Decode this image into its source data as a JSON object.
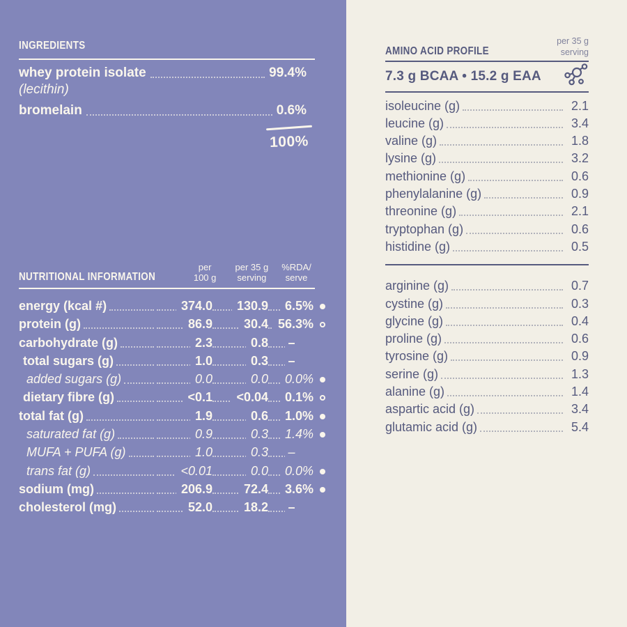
{
  "colors": {
    "panel_left_bg": "#8286ba",
    "panel_right_bg": "#f2efe6",
    "text_on_left": "#faf6ec",
    "text_on_right": "#565a7e"
  },
  "ingredients": {
    "title": "INGREDIENTS",
    "items": [
      {
        "name": "whey protein isolate",
        "note": "(lecithin)",
        "value": "99.4%"
      },
      {
        "name": "bromelain",
        "note": "",
        "value": "0.6%"
      }
    ],
    "total": "100%"
  },
  "nutrition": {
    "title": "NUTRITIONAL INFORMATION",
    "columns": [
      "per\n100 g",
      "per 35 g\nserving",
      "%RDA/\nserve"
    ],
    "rows": [
      {
        "label": "energy (kcal #)",
        "indent": 0,
        "italic": false,
        "per100": "374.0",
        "per35": "130.9",
        "rda": "6.5%",
        "bullet": "filled"
      },
      {
        "label": "protein (g)",
        "indent": 0,
        "italic": false,
        "per100": "86.9",
        "per35": "30.4",
        "rda": "56.3%",
        "bullet": "open"
      },
      {
        "label": "carbohydrate (g)",
        "indent": 0,
        "italic": false,
        "per100": "2.3",
        "per35": "0.8",
        "rda": "–",
        "bullet": "none"
      },
      {
        "label": "total sugars (g)",
        "indent": 1,
        "italic": false,
        "per100": "1.0",
        "per35": "0.3",
        "rda": "–",
        "bullet": "none"
      },
      {
        "label": "added sugars (g)",
        "indent": 2,
        "italic": true,
        "per100": "0.0",
        "per35": "0.0",
        "rda": "0.0%",
        "bullet": "filled"
      },
      {
        "label": "dietary fibre (g)",
        "indent": 1,
        "italic": false,
        "per100": "<0.1",
        "per35": "<0.04",
        "rda": "0.1%",
        "bullet": "open"
      },
      {
        "label": "total fat (g)",
        "indent": 0,
        "italic": false,
        "per100": "1.9",
        "per35": "0.6",
        "rda": "1.0%",
        "bullet": "filled"
      },
      {
        "label": "saturated fat (g)",
        "indent": 2,
        "italic": true,
        "per100": "0.9",
        "per35": "0.3",
        "rda": "1.4%",
        "bullet": "filled"
      },
      {
        "label": "MUFA + PUFA (g)",
        "indent": 2,
        "italic": true,
        "per100": "1.0",
        "per35": "0.3",
        "rda": "–",
        "bullet": "none"
      },
      {
        "label": "trans fat (g)",
        "indent": 2,
        "italic": true,
        "per100": "<0.01",
        "per35": "0.0",
        "rda": "0.0%",
        "bullet": "filled"
      },
      {
        "label": "sodium (mg)",
        "indent": 0,
        "italic": false,
        "per100": "206.9",
        "per35": "72.4",
        "rda": "3.6%",
        "bullet": "filled"
      },
      {
        "label": "cholesterol (mg)",
        "indent": 0,
        "italic": false,
        "per100": "52.0",
        "per35": "18.2",
        "rda": "–",
        "bullet": "none"
      }
    ]
  },
  "amino": {
    "title": "AMINO ACID PROFILE",
    "unit_note": "per 35 g\nserving",
    "summary": "7.3 g BCAA  •  15.2 g EAA",
    "icon": "molecule-icon",
    "essential": [
      {
        "label": "isoleucine (g)",
        "value": "2.1"
      },
      {
        "label": "leucine (g)",
        "value": "3.4"
      },
      {
        "label": "valine (g)",
        "value": "1.8"
      },
      {
        "label": "lysine (g)",
        "value": "3.2"
      },
      {
        "label": "methionine (g)",
        "value": "0.6"
      },
      {
        "label": "phenylalanine (g)",
        "value": "0.9"
      },
      {
        "label": "threonine (g)",
        "value": "2.1"
      },
      {
        "label": "tryptophan (g)",
        "value": "0.6"
      },
      {
        "label": "histidine (g)",
        "value": "0.5"
      }
    ],
    "non_essential": [
      {
        "label": "arginine (g)",
        "value": "0.7"
      },
      {
        "label": "cystine (g)",
        "value": "0.3"
      },
      {
        "label": "glycine (g)",
        "value": "0.4"
      },
      {
        "label": "proline (g)",
        "value": "0.6"
      },
      {
        "label": "tyrosine (g)",
        "value": "0.9"
      },
      {
        "label": "serine (g)",
        "value": "1.3"
      },
      {
        "label": "alanine (g)",
        "value": "1.4"
      },
      {
        "label": "aspartic acid (g)",
        "value": "3.4"
      },
      {
        "label": "glutamic acid (g)",
        "value": "5.4"
      }
    ]
  }
}
